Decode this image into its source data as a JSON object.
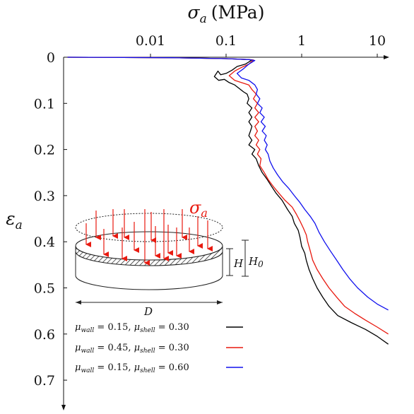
{
  "chart_data": {
    "type": "line",
    "x_scale": "log",
    "x_axis_position": "top",
    "y_axis_inverted": true,
    "xlabel_symbol": "σ",
    "xlabel_subscript": "a",
    "xlabel_unit": "(MPa)",
    "ylabel_symbol": "ε",
    "ylabel_subscript": "a",
    "xlim": [
      0.0008,
      15
    ],
    "ylim": [
      0,
      0.73
    ],
    "x_ticks": [
      0.01,
      0.1,
      1,
      10
    ],
    "x_tick_labels": [
      "0.01",
      "0.1",
      "1",
      "10"
    ],
    "y_ticks": [
      0,
      0.1,
      0.2,
      0.3,
      0.4,
      0.5,
      0.6,
      0.7
    ],
    "y_tick_labels": [
      "0",
      "0.1",
      "0.2",
      "0.3",
      "0.4",
      "0.5",
      "0.6",
      "0.7"
    ],
    "grid": false,
    "legend_position": "bottom-left",
    "series": [
      {
        "name": "μwall = 0.15, μshell = 0.30",
        "color": "#000000",
        "points": [
          [
            0.0008,
            0.0
          ],
          [
            0.02,
            0.001
          ],
          [
            0.1,
            0.003
          ],
          [
            0.2,
            0.005
          ],
          [
            0.22,
            0.006
          ],
          [
            0.18,
            0.015
          ],
          [
            0.14,
            0.02
          ],
          [
            0.12,
            0.028
          ],
          [
            0.1,
            0.035
          ],
          [
            0.085,
            0.038
          ],
          [
            0.078,
            0.03
          ],
          [
            0.07,
            0.042
          ],
          [
            0.08,
            0.05
          ],
          [
            0.095,
            0.048
          ],
          [
            0.11,
            0.055
          ],
          [
            0.13,
            0.06
          ],
          [
            0.15,
            0.068
          ],
          [
            0.17,
            0.075
          ],
          [
            0.19,
            0.08
          ],
          [
            0.2,
            0.09
          ],
          [
            0.19,
            0.1
          ],
          [
            0.22,
            0.11
          ],
          [
            0.2,
            0.12
          ],
          [
            0.22,
            0.13
          ],
          [
            0.2,
            0.14
          ],
          [
            0.22,
            0.15
          ],
          [
            0.21,
            0.16
          ],
          [
            0.2,
            0.17
          ],
          [
            0.22,
            0.18
          ],
          [
            0.2,
            0.19
          ],
          [
            0.24,
            0.2
          ],
          [
            0.22,
            0.21
          ],
          [
            0.25,
            0.22
          ],
          [
            0.27,
            0.235
          ],
          [
            0.3,
            0.25
          ],
          [
            0.35,
            0.265
          ],
          [
            0.4,
            0.28
          ],
          [
            0.46,
            0.295
          ],
          [
            0.55,
            0.31
          ],
          [
            0.65,
            0.33
          ],
          [
            0.75,
            0.345
          ],
          [
            0.8,
            0.36
          ],
          [
            0.9,
            0.375
          ],
          [
            0.95,
            0.39
          ],
          [
            1.0,
            0.41
          ],
          [
            1.1,
            0.425
          ],
          [
            1.15,
            0.44
          ],
          [
            1.25,
            0.46
          ],
          [
            1.4,
            0.48
          ],
          [
            1.6,
            0.5
          ],
          [
            1.9,
            0.52
          ],
          [
            2.3,
            0.54
          ],
          [
            3.0,
            0.56
          ],
          [
            4.5,
            0.575
          ],
          [
            7,
            0.59
          ],
          [
            10,
            0.605
          ],
          [
            14,
            0.622
          ]
        ]
      },
      {
        "name": "μwall = 0.45, μshell = 0.30",
        "color": "#e8190f",
        "points": [
          [
            0.0008,
            0.0
          ],
          [
            0.02,
            0.001
          ],
          [
            0.1,
            0.003
          ],
          [
            0.2,
            0.005
          ],
          [
            0.23,
            0.006
          ],
          [
            0.2,
            0.015
          ],
          [
            0.16,
            0.022
          ],
          [
            0.13,
            0.03
          ],
          [
            0.11,
            0.04
          ],
          [
            0.13,
            0.05
          ],
          [
            0.16,
            0.055
          ],
          [
            0.2,
            0.06
          ],
          [
            0.22,
            0.07
          ],
          [
            0.25,
            0.08
          ],
          [
            0.23,
            0.09
          ],
          [
            0.26,
            0.1
          ],
          [
            0.24,
            0.11
          ],
          [
            0.27,
            0.12
          ],
          [
            0.24,
            0.13
          ],
          [
            0.27,
            0.14
          ],
          [
            0.24,
            0.15
          ],
          [
            0.26,
            0.16
          ],
          [
            0.24,
            0.17
          ],
          [
            0.27,
            0.18
          ],
          [
            0.25,
            0.19
          ],
          [
            0.28,
            0.2
          ],
          [
            0.26,
            0.21
          ],
          [
            0.29,
            0.22
          ],
          [
            0.28,
            0.235
          ],
          [
            0.32,
            0.25
          ],
          [
            0.36,
            0.265
          ],
          [
            0.42,
            0.28
          ],
          [
            0.5,
            0.295
          ],
          [
            0.6,
            0.31
          ],
          [
            0.75,
            0.325
          ],
          [
            0.85,
            0.34
          ],
          [
            0.95,
            0.355
          ],
          [
            1.05,
            0.37
          ],
          [
            1.15,
            0.385
          ],
          [
            1.2,
            0.4
          ],
          [
            1.3,
            0.42
          ],
          [
            1.4,
            0.44
          ],
          [
            1.6,
            0.46
          ],
          [
            1.9,
            0.48
          ],
          [
            2.3,
            0.5
          ],
          [
            2.9,
            0.52
          ],
          [
            3.7,
            0.54
          ],
          [
            5,
            0.555
          ],
          [
            7,
            0.57
          ],
          [
            10,
            0.585
          ],
          [
            14,
            0.6
          ]
        ]
      },
      {
        "name": "μwall = 0.15, μshell = 0.60",
        "color": "#1010ee",
        "points": [
          [
            0.0008,
            0.0
          ],
          [
            0.02,
            0.001
          ],
          [
            0.1,
            0.003
          ],
          [
            0.2,
            0.005
          ],
          [
            0.24,
            0.007
          ],
          [
            0.2,
            0.015
          ],
          [
            0.17,
            0.025
          ],
          [
            0.14,
            0.035
          ],
          [
            0.16,
            0.045
          ],
          [
            0.2,
            0.05
          ],
          [
            0.24,
            0.06
          ],
          [
            0.26,
            0.07
          ],
          [
            0.25,
            0.08
          ],
          [
            0.28,
            0.09
          ],
          [
            0.26,
            0.1
          ],
          [
            0.3,
            0.11
          ],
          [
            0.28,
            0.12
          ],
          [
            0.32,
            0.13
          ],
          [
            0.29,
            0.14
          ],
          [
            0.33,
            0.15
          ],
          [
            0.3,
            0.16
          ],
          [
            0.34,
            0.17
          ],
          [
            0.32,
            0.18
          ],
          [
            0.35,
            0.19
          ],
          [
            0.33,
            0.2
          ],
          [
            0.36,
            0.21
          ],
          [
            0.38,
            0.225
          ],
          [
            0.42,
            0.24
          ],
          [
            0.48,
            0.255
          ],
          [
            0.56,
            0.27
          ],
          [
            0.68,
            0.285
          ],
          [
            0.8,
            0.3
          ],
          [
            0.95,
            0.315
          ],
          [
            1.1,
            0.33
          ],
          [
            1.3,
            0.345
          ],
          [
            1.5,
            0.36
          ],
          [
            1.7,
            0.38
          ],
          [
            2.0,
            0.4
          ],
          [
            2.4,
            0.42
          ],
          [
            2.9,
            0.44
          ],
          [
            3.5,
            0.46
          ],
          [
            4.3,
            0.48
          ],
          [
            5.5,
            0.5
          ],
          [
            7.5,
            0.52
          ],
          [
            10,
            0.535
          ],
          [
            14,
            0.548
          ]
        ]
      }
    ]
  },
  "inset": {
    "sigma_symbol": "σ",
    "sigma_subscript": "a",
    "sigma_color": "#e8190f",
    "arrow_color": "#e8190f",
    "label_H": "H",
    "label_H0": "H",
    "label_H0_subscript": "0",
    "label_D": "D"
  },
  "legend": {
    "entries": [
      {
        "mu1": "μ",
        "sub1": "wall",
        "val1": " = 0.15, ",
        "mu2": "μ",
        "sub2": "shell",
        "val2": " = 0.30",
        "color": "#000000"
      },
      {
        "mu1": "μ",
        "sub1": "wall",
        "val1": " = 0.45, ",
        "mu2": "μ",
        "sub2": "shell",
        "val2": " = 0.30",
        "color": "#e8190f"
      },
      {
        "mu1": "μ",
        "sub1": "wall",
        "val1": " = 0.15, ",
        "mu2": "μ",
        "sub2": "shell",
        "val2": " = 0.60",
        "color": "#1010ee"
      }
    ]
  }
}
